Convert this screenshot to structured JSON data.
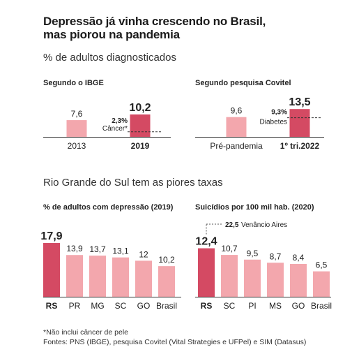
{
  "title_line1": "Depressão já vinha crescendo no Brasil,",
  "title_line2": "mas piorou na pandemia",
  "subtitle": "% de adultos diagnosticados",
  "section2_title": "Rio Grande do Sul tem as piores taxas",
  "footnote": "*Não inclui câncer de pele",
  "sources": "Fontes: PNS (IBGE), pesquisa Covitel (Vital Strategies e UFPel) e SIM (Datasus)",
  "colors": {
    "light": "#f3a7ad",
    "dark": "#d44a63",
    "text": "#222222",
    "grey": "#666666"
  },
  "chart_data": [
    {
      "id": "ibge",
      "type": "bar",
      "title": "Segundo o IBGE",
      "categories": [
        "2013",
        "2019"
      ],
      "values": [
        7.6,
        10.2
      ],
      "value_labels": [
        "7,6",
        "10,2"
      ],
      "highlight_index": 1,
      "reference": {
        "value": 2.3,
        "value_label": "2,3%",
        "label": "Câncer*"
      }
    },
    {
      "id": "covitel",
      "type": "bar",
      "title": "Segundo pesquisa Covitel",
      "categories": [
        "Pré-pandemia",
        "1º tri.2022"
      ],
      "values": [
        9.6,
        13.5
      ],
      "value_labels": [
        "9,6",
        "13,5"
      ],
      "highlight_index": 1,
      "reference": {
        "value": 9.3,
        "value_label": "9,3%",
        "label": "Diabetes"
      }
    },
    {
      "id": "depressao_uf",
      "type": "bar",
      "title": "% de adultos com depressão (2019)",
      "categories": [
        "RS",
        "PR",
        "MG",
        "SC",
        "GO",
        "Brasil"
      ],
      "values": [
        17.9,
        13.9,
        13.7,
        13.1,
        12.0,
        10.2
      ],
      "value_labels": [
        "17,9",
        "13,9",
        "13,7",
        "13,1",
        "12",
        "10,2"
      ],
      "highlight_index": 0
    },
    {
      "id": "suicidios_uf",
      "type": "bar",
      "title": "Suicídios por 100 mil hab. (2020)",
      "categories": [
        "RS",
        "SC",
        "PI",
        "MS",
        "GO",
        "Brasil"
      ],
      "values": [
        12.4,
        10.7,
        9.5,
        8.7,
        8.4,
        6.5
      ],
      "value_labels": [
        "12,4",
        "10,7",
        "9,5",
        "8,7",
        "8,4",
        "6,5"
      ],
      "highlight_index": 0,
      "annotation": {
        "value": 22.5,
        "value_label": "22,5",
        "label": "Venâncio Aires"
      }
    }
  ]
}
